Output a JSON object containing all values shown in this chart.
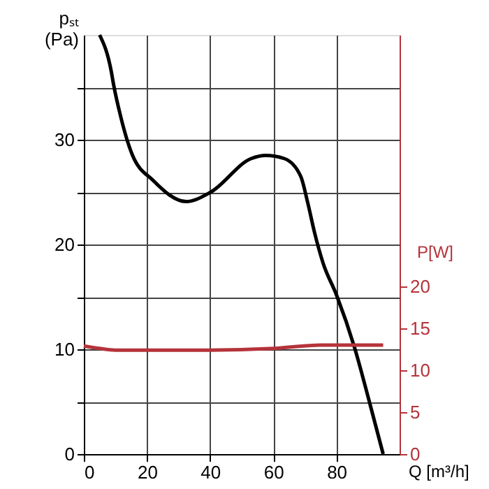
{
  "chart_data": {
    "type": "line",
    "xlabel": "Q [m³/h]",
    "ylabel": "pₛₜ\n(Pa)",
    "y2label": "P[W]",
    "xlim": [
      0,
      100
    ],
    "xticks": [
      0,
      20,
      40,
      60,
      80
    ],
    "ylim": [
      0,
      40
    ],
    "yticks": [
      0,
      {
        "value": 5,
        "label": null
      },
      10,
      {
        "value": 15,
        "label": null
      },
      20,
      {
        "value": 25,
        "label": null
      },
      30,
      {
        "value": 35,
        "label": null
      }
    ],
    "y2lim": [
      0,
      50
    ],
    "y2ticks": [
      0,
      5,
      10,
      15,
      20
    ],
    "grid": true,
    "line_style": "solid",
    "marker": "none",
    "series": [
      {
        "color": "#000000",
        "x": [
          5,
          8.7,
          9.4,
          11.6,
          15.3,
          22,
          32.4,
          40.2,
          53,
          57.6,
          63.5,
          68.7,
          70.9,
          73.1,
          75.8,
          80,
          85.7,
          90.6,
          94.8
        ],
        "values": [
          40,
          36.5,
          35.3,
          32.3,
          28.6,
          26.1,
          24.1,
          25,
          28.2,
          28.5,
          28.2,
          26.5,
          24,
          21.1,
          18.2,
          15.2,
          10.2,
          4.8,
          0
        ]
      },
      {
        "color": "#b5333a",
        "axis": "y2",
        "x": [
          0,
          5,
          10,
          20,
          40,
          60,
          75,
          94.8
        ],
        "values": [
          12.9,
          12.6,
          12.4,
          12.4,
          12.4,
          12.6,
          13,
          13
        ]
      }
    ]
  }
}
